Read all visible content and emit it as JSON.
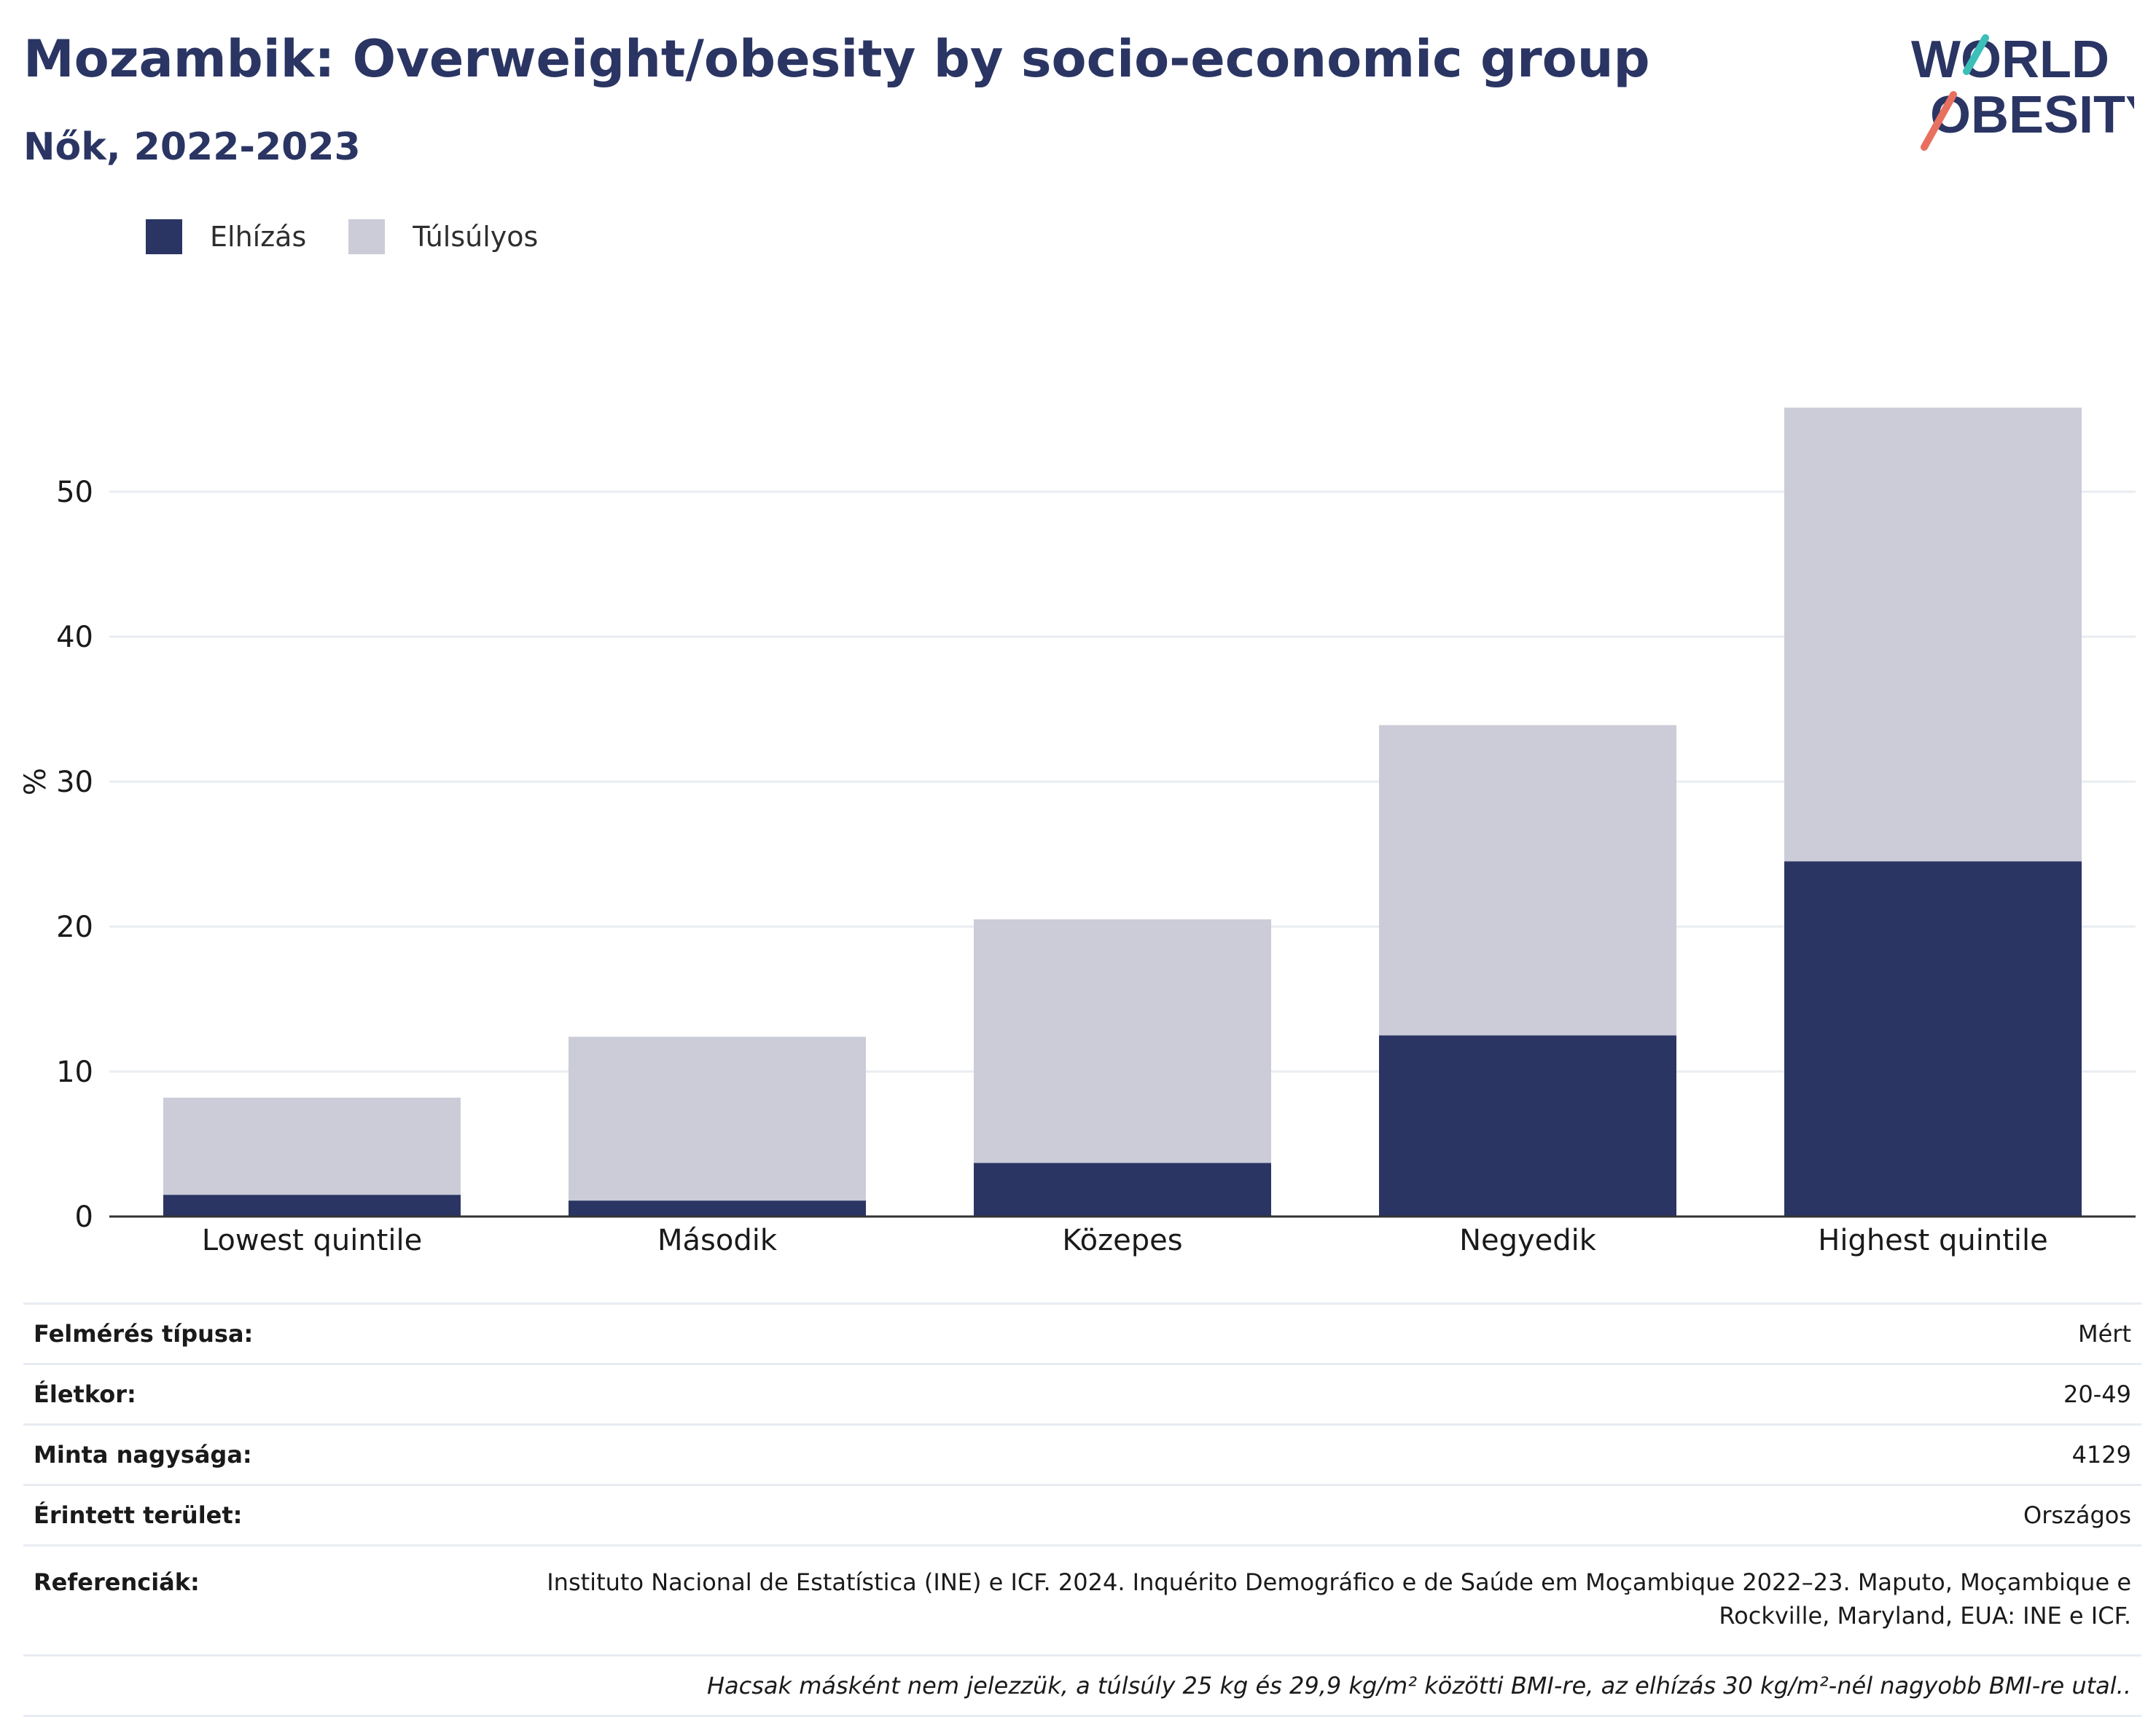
{
  "title": "Mozambik: Overweight/obesity by socio-economic group",
  "subtitle": "Nők, 2022-2023",
  "logo": {
    "line1": "WORLD",
    "line2": "OBESITY"
  },
  "colors": {
    "obesity": "#2a3563",
    "overweight": "#cbccd8",
    "title": "#2a3563"
  },
  "legend": [
    {
      "label": "Elhízás",
      "color": "#2a3563"
    },
    {
      "label": "Túlsúlyos",
      "color": "#cbccd8"
    }
  ],
  "chart_data": {
    "type": "bar",
    "stacked": true,
    "categories": [
      "Lowest quintile",
      "Második",
      "Közepes",
      "Negyedik",
      "Highest quintile"
    ],
    "series": [
      {
        "name": "Elhízás",
        "color": "#2a3563",
        "values": [
          1.5,
          1.1,
          3.7,
          12.5,
          24.5
        ]
      },
      {
        "name": "Túlsúlyos",
        "color": "#cbccd8",
        "values": [
          6.7,
          11.3,
          16.8,
          21.4,
          31.3
        ]
      }
    ],
    "ylabel": "%",
    "ylim": [
      0,
      58
    ],
    "yticks": [
      0,
      10,
      20,
      30,
      40,
      50
    ],
    "grid": true,
    "legend_position": "top-left"
  },
  "info": [
    {
      "label": "Felmérés típusa:",
      "value": "Mért"
    },
    {
      "label": "Életkor:",
      "value": "20-49"
    },
    {
      "label": "Minta nagysága:",
      "value": "4129"
    },
    {
      "label": "Érintett terület:",
      "value": "Országos"
    },
    {
      "label": "Referenciák:",
      "value": "Instituto Nacional de Estatística (INE) e ICF. 2024. Inquérito Demográfico e de Saúde em Moçambique 2022–23. Maputo, Moçambique e Rockville, Maryland, EUA: INE e ICF."
    }
  ],
  "footnote": "Hacsak másként nem jelezzük, a túlsúly 25 kg és 29,9 kg/m² közötti BMI-re, az elhízás 30 kg/m²-nél nagyobb BMI-re utal.."
}
